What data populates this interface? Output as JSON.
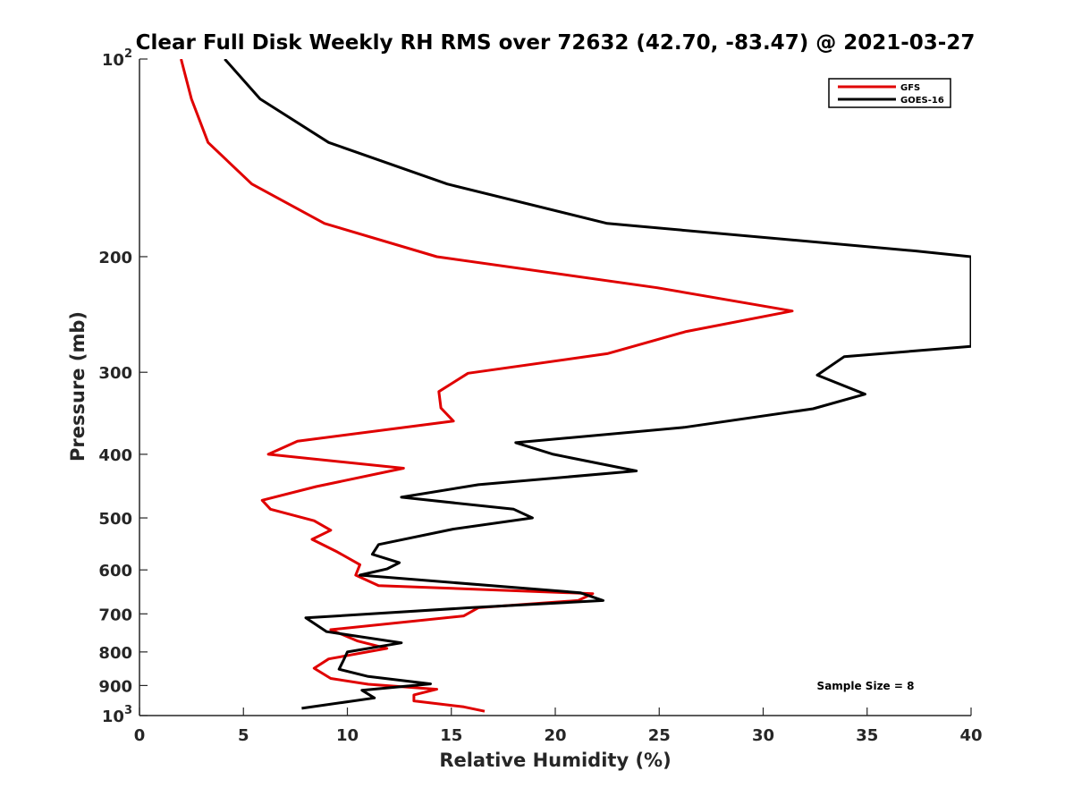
{
  "chart_data": {
    "type": "line",
    "title": "Clear Full Disk Weekly RH RMS over 72632 (42.70, -83.47) @ 2021-03-27",
    "xlabel": "Relative Humidity (%)",
    "ylabel": "Pressure (mb)",
    "xlim": [
      0,
      40
    ],
    "ylim": [
      100,
      1000
    ],
    "y_scale": "log",
    "y_reversed": true,
    "grid": false,
    "x_ticks": [
      {
        "value": 0,
        "label": "0"
      },
      {
        "value": 5,
        "label": "5"
      },
      {
        "value": 10,
        "label": "10"
      },
      {
        "value": 15,
        "label": "15"
      },
      {
        "value": 20,
        "label": "20"
      },
      {
        "value": 25,
        "label": "25"
      },
      {
        "value": 30,
        "label": "30"
      },
      {
        "value": 35,
        "label": "35"
      },
      {
        "value": 40,
        "label": "40"
      }
    ],
    "y_ticks": [
      {
        "value": 100,
        "base": "10",
        "exp": "2"
      },
      {
        "value": 200,
        "label": "200"
      },
      {
        "value": 300,
        "label": "300"
      },
      {
        "value": 400,
        "label": "400"
      },
      {
        "value": 500,
        "label": "500"
      },
      {
        "value": 600,
        "label": "600"
      },
      {
        "value": 700,
        "label": "700"
      },
      {
        "value": 800,
        "label": "800"
      },
      {
        "value": 900,
        "label": "900"
      },
      {
        "value": 1000,
        "base": "10",
        "exp": "3"
      }
    ],
    "legend_position": "top-right",
    "annotation": "Sample Size = 8",
    "series": [
      {
        "name": "GFS",
        "color": "#e00000",
        "points": [
          [
            2.0,
            100
          ],
          [
            2.5,
            115
          ],
          [
            3.3,
            134
          ],
          [
            5.4,
            155
          ],
          [
            8.9,
            178
          ],
          [
            14.3,
            200
          ],
          [
            24.9,
            223
          ],
          [
            31.4,
            242
          ],
          [
            26.3,
            260
          ],
          [
            22.5,
            281
          ],
          [
            15.8,
            301
          ],
          [
            14.4,
            321
          ],
          [
            14.5,
            340
          ],
          [
            15.1,
            356
          ],
          [
            7.6,
            382
          ],
          [
            6.2,
            400
          ],
          [
            12.7,
            420
          ],
          [
            8.5,
            448
          ],
          [
            5.9,
            470
          ],
          [
            6.3,
            485
          ],
          [
            8.4,
            505
          ],
          [
            9.2,
            522
          ],
          [
            8.3,
            539
          ],
          [
            9.5,
            563
          ],
          [
            10.6,
            589
          ],
          [
            10.4,
            611
          ],
          [
            11.5,
            634
          ],
          [
            21.8,
            652
          ],
          [
            21.1,
            668
          ],
          [
            16.3,
            685
          ],
          [
            15.6,
            705
          ],
          [
            9.2,
            740
          ],
          [
            10.5,
            770
          ],
          [
            11.9,
            790
          ],
          [
            9.1,
            820
          ],
          [
            8.4,
            847
          ],
          [
            9.2,
            878
          ],
          [
            11.0,
            896
          ],
          [
            14.3,
            912
          ],
          [
            13.2,
            930
          ],
          [
            13.2,
            950
          ],
          [
            15.6,
            970
          ],
          [
            16.6,
            985
          ]
        ]
      },
      {
        "name": "GOES-16",
        "color": "#000000",
        "points": [
          [
            4.1,
            100
          ],
          [
            5.8,
            115
          ],
          [
            9.1,
            134
          ],
          [
            14.8,
            155
          ],
          [
            22.5,
            178
          ],
          [
            37.3,
            196
          ],
          [
            40.0,
            200
          ],
          [
            40.0,
            274
          ],
          [
            33.9,
            284
          ],
          [
            32.6,
            303
          ],
          [
            34.9,
            324
          ],
          [
            32.4,
            341
          ],
          [
            26.2,
            364
          ],
          [
            18.1,
            384
          ],
          [
            19.9,
            400
          ],
          [
            23.9,
            424
          ],
          [
            16.3,
            445
          ],
          [
            12.6,
            465
          ],
          [
            18.0,
            485
          ],
          [
            18.9,
            500
          ],
          [
            15.1,
            520
          ],
          [
            11.5,
            549
          ],
          [
            11.2,
            568
          ],
          [
            12.5,
            585
          ],
          [
            11.9,
            598
          ],
          [
            10.6,
            611
          ],
          [
            21.2,
            650
          ],
          [
            22.3,
            668
          ],
          [
            15.9,
            685
          ],
          [
            8.0,
            710
          ],
          [
            9.0,
            745
          ],
          [
            12.6,
            775
          ],
          [
            10.0,
            800
          ],
          [
            9.8,
            825
          ],
          [
            9.6,
            850
          ],
          [
            11.0,
            872
          ],
          [
            14.0,
            895
          ],
          [
            10.7,
            915
          ],
          [
            11.3,
            940
          ],
          [
            7.8,
            975
          ]
        ]
      }
    ]
  }
}
